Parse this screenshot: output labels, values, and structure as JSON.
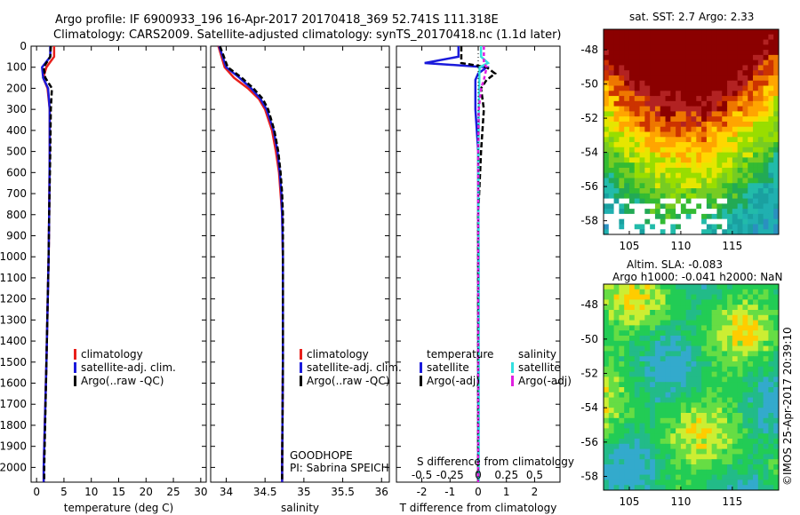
{
  "header": {
    "line1": "Argo profile: IF 6900933_196 16-Apr-2017 20170418_369 52.741S 111.318E",
    "line2": "Climatology: CARS2009. Satellite-adjusted climatology: synTS_20170418.nc (1.1d later)"
  },
  "legend_common": {
    "clim": "climatology",
    "sat": "satellite-adj. clim.",
    "argo": "Argo(..raw -QC)"
  },
  "legend_diff": {
    "temp_head": "temperature",
    "sal_head": "salinity",
    "t_sat": "satellite",
    "t_argo": "Argo(-adj)",
    "s_sat": "satellite",
    "s_argo": "Argo(-adj)"
  },
  "annotations": {
    "project": "GOODHOPE",
    "pi": "PI: Sabrina SPEICH",
    "s_diff_title": "S difference from climatology"
  },
  "maps": {
    "sst_title": "sat. SST: 2.7 Argo: 2.33",
    "sla_title1": "Altim. SLA: -0.083",
    "sla_title2": "Argo h1000: -0.041 h2000: NaN",
    "credit": "©IMOS 25-Apr-2017 20:39:10"
  },
  "colors": {
    "climatology": "#e8201c",
    "satellite": "#1a1adb",
    "argo": "#000000",
    "sal_satellite": "#33e0e0",
    "sal_argo": "#e020e0"
  },
  "chart_data": [
    {
      "type": "line",
      "xlabel": "temperature (deg C)",
      "ylabel": "",
      "xlim": [
        -1,
        31
      ],
      "ylim": [
        2070,
        0
      ],
      "xticks": [
        "0",
        "5",
        "10",
        "15",
        "20",
        "25",
        "30"
      ],
      "yticks": [
        "0",
        "100",
        "200",
        "300",
        "400",
        "500",
        "600",
        "700",
        "800",
        "900",
        "1000",
        "1100",
        "1200",
        "1300",
        "1400",
        "1500",
        "1600",
        "1700",
        "1800",
        "1900",
        "2000"
      ],
      "depth": [
        0,
        50,
        100,
        150,
        200,
        300,
        500,
        800,
        1000,
        1500,
        2000,
        2070
      ],
      "series": [
        {
          "name": "climatology",
          "values": [
            3.2,
            3.2,
            1.8,
            1.2,
            2.0,
            2.4,
            2.4,
            2.3,
            2.2,
            1.8,
            1.3,
            1.3
          ]
        },
        {
          "name": "satellite-adj. clim.",
          "values": [
            2.5,
            2.5,
            1.0,
            1.2,
            2.1,
            2.4,
            2.4,
            2.3,
            2.2,
            1.8,
            1.3,
            1.3
          ]
        },
        {
          "name": "Argo(..raw -QC)",
          "values": [
            2.6,
            2.5,
            1.3,
            1.6,
            2.8,
            2.6,
            2.5,
            2.3,
            2.2,
            1.8,
            1.4,
            1.4
          ]
        }
      ]
    },
    {
      "type": "line",
      "xlabel": "salinity",
      "ylabel": "",
      "xlim": [
        33.8,
        36.1
      ],
      "ylim": [
        2070,
        0
      ],
      "xticks": [
        "34",
        "34.5",
        "35",
        "35.5",
        "36"
      ],
      "depth": [
        0,
        100,
        150,
        200,
        250,
        300,
        400,
        500,
        600,
        700,
        800,
        1000,
        1500,
        2000,
        2070
      ],
      "series": [
        {
          "name": "climatology",
          "values": [
            33.9,
            33.98,
            34.1,
            34.28,
            34.42,
            34.5,
            34.59,
            34.64,
            34.68,
            34.7,
            34.72,
            34.73,
            34.73,
            34.72,
            34.72
          ]
        },
        {
          "name": "satellite-adj. clim.",
          "values": [
            33.91,
            34.0,
            34.17,
            34.32,
            34.44,
            34.52,
            34.61,
            34.66,
            34.69,
            34.71,
            34.72,
            34.73,
            34.73,
            34.72,
            34.72
          ]
        },
        {
          "name": "Argo(..raw -QC)",
          "values": [
            33.92,
            34.02,
            34.2,
            34.35,
            34.47,
            34.54,
            34.62,
            34.67,
            34.7,
            34.72,
            34.73,
            34.73,
            34.73,
            34.72,
            34.72
          ]
        }
      ]
    },
    {
      "type": "line",
      "xlabel": "T difference from climatology",
      "ylabel": "",
      "xlim": [
        -2.9,
        2.9
      ],
      "ylim": [
        2070,
        0
      ],
      "xticks": [
        "-2",
        "-1",
        "0",
        "1",
        "2"
      ],
      "top_xticks": [
        "-0.5",
        "-0.25",
        "0",
        "0.25",
        "0.5"
      ],
      "top_xlabel": "S difference from climatology",
      "depth": [
        0,
        50,
        80,
        100,
        130,
        160,
        200,
        300,
        500,
        800,
        1000,
        2000,
        2070
      ],
      "series": [
        {
          "name": "temperature satellite",
          "values": [
            -0.7,
            -0.7,
            -1.9,
            0.3,
            0.0,
            -0.1,
            -0.1,
            -0.1,
            0.0,
            0.0,
            0.0,
            0.0,
            0.0
          ]
        },
        {
          "name": "temperature Argo(-adj)",
          "values": [
            -0.6,
            -0.6,
            -0.6,
            0.3,
            0.6,
            0.3,
            0.1,
            0.2,
            0.1,
            0.0,
            0.0,
            0.0,
            0.0
          ]
        },
        {
          "name": "salinity satellite",
          "values": [
            0.1,
            0.1,
            0.35,
            0.05,
            0.04,
            0.04,
            0.03,
            0.02,
            0.01,
            0.01,
            0.02,
            0.02,
            0.02
          ]
        },
        {
          "name": "salinity Argo(-adj)",
          "values": [
            0.2,
            0.2,
            0.2,
            0.3,
            0.25,
            0.2,
            0.1,
            0.02,
            0.0,
            0.0,
            0.0,
            0.0,
            0.0
          ]
        }
      ]
    },
    {
      "type": "heatmap",
      "title": "sat. SST: 2.7 Argo: 2.33",
      "xlim": [
        102.5,
        119.5
      ],
      "ylim": [
        -58.8,
        -46.8
      ],
      "xticks": [
        "105",
        "110",
        "115"
      ],
      "yticks": [
        "-48",
        "-50",
        "-52",
        "-54",
        "-56",
        "-58"
      ]
    },
    {
      "type": "heatmap",
      "title": "Altim. SLA: -0.083",
      "xlim": [
        102.5,
        119.5
      ],
      "ylim": [
        -58.8,
        -46.8
      ],
      "xticks": [
        "105",
        "110",
        "115"
      ],
      "yticks": [
        "-48",
        "-50",
        "-52",
        "-54",
        "-56",
        "-58"
      ]
    }
  ]
}
